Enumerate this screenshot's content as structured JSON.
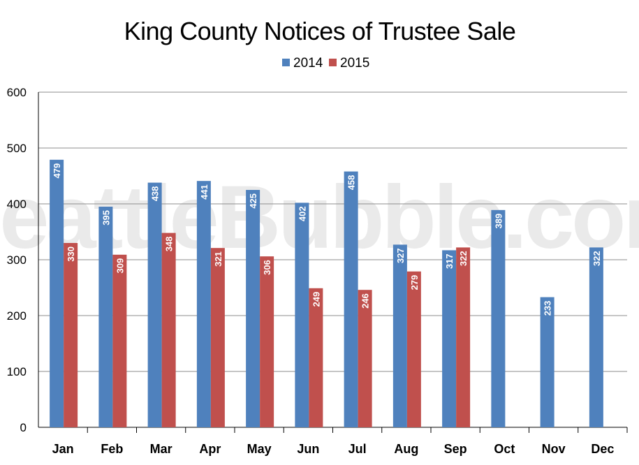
{
  "chart_data": {
    "type": "bar",
    "title": "King County Notices of Trustee Sale",
    "watermark": "SeattleBubble.com",
    "categories": [
      "Jan",
      "Feb",
      "Mar",
      "Apr",
      "May",
      "Jun",
      "Jul",
      "Aug",
      "Sep",
      "Oct",
      "Nov",
      "Dec"
    ],
    "series": [
      {
        "name": "2014",
        "color": "#4f81bd",
        "values": [
          479,
          395,
          438,
          441,
          425,
          402,
          458,
          327,
          317,
          389,
          233,
          322
        ]
      },
      {
        "name": "2015",
        "color": "#c0504d",
        "values": [
          330,
          309,
          348,
          321,
          306,
          249,
          246,
          279,
          322,
          null,
          null,
          null
        ]
      }
    ],
    "ylim": [
      0,
      600
    ],
    "yticks": [
      0,
      100,
      200,
      300,
      400,
      500,
      600
    ],
    "grid": true,
    "legend_position": "top-center",
    "xlabel": "",
    "ylabel": ""
  }
}
